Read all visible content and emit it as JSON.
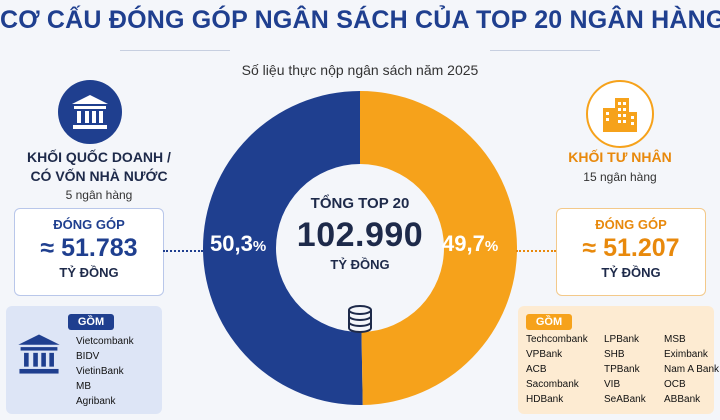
{
  "title": "CƠ CẤU ĐÓNG GÓP NGÂN SÁCH CỦA TOP 20 NGÂN HÀNG",
  "subtitle": "Số liệu thực nộp ngân sách năm 2025",
  "colors": {
    "state": "#1f3f8f",
    "private": "#f6a21b",
    "dark_text": "#1e2a4a"
  },
  "chart_data": {
    "type": "pie",
    "title": "CƠ CẤU ĐÓNG GÓP NGÂN SÁCH CỦA TOP 20 NGÂN HÀNG",
    "subtitle": "Số liệu thực nộp ngân sách năm 2025",
    "categories": [
      "KHỐI QUỐC DOANH / CÓ VỐN NHÀ NƯỚC",
      "KHỐI TƯ NHÂN"
    ],
    "values": [
      51783,
      51207
    ],
    "percent_labels": [
      "50,3%",
      "49,7%"
    ],
    "percent_numbers": [
      "50,3",
      "49,7"
    ],
    "percent_sign": "%",
    "colors": [
      "#1f3f8f",
      "#f6a21b"
    ],
    "center": {
      "label": "TỔNG TOP 20",
      "total": "102.990",
      "unit": "TỶ ĐỒNG"
    }
  },
  "state_sector": {
    "title_line1": "KHỐI QUỐC DOANH /",
    "title_line2": "CÓ VỐN NHÀ NƯỚC",
    "count": "5 ngân hàng",
    "contribution_label": "ĐÓNG GÓP",
    "contribution_value": "≈ 51.783",
    "contribution_unit": "TỶ ĐỒNG",
    "includes_label": "GỒM",
    "banks": [
      "Vietcombank",
      "BIDV",
      "VietinBank",
      "MB",
      "Agribank"
    ],
    "icon": "bank-icon"
  },
  "private_sector": {
    "title": "KHỐI TƯ NHÂN",
    "count": "15 ngân hàng",
    "contribution_label": "ĐÓNG GÓP",
    "contribution_value": "≈ 51.207",
    "contribution_unit": "TỶ ĐỒNG",
    "includes_label": "GỒM",
    "banks_col1": [
      "Techcombank",
      "VPBank",
      "ACB",
      "Sacombank",
      "HDBank"
    ],
    "banks_col2": [
      "LPBank",
      "SHB",
      "TPBank",
      "VIB",
      "SeABank"
    ],
    "banks_col3": [
      "MSB",
      "Eximbank",
      "Nam A Bank",
      "OCB",
      "ABBank"
    ],
    "icon": "building-icon"
  }
}
